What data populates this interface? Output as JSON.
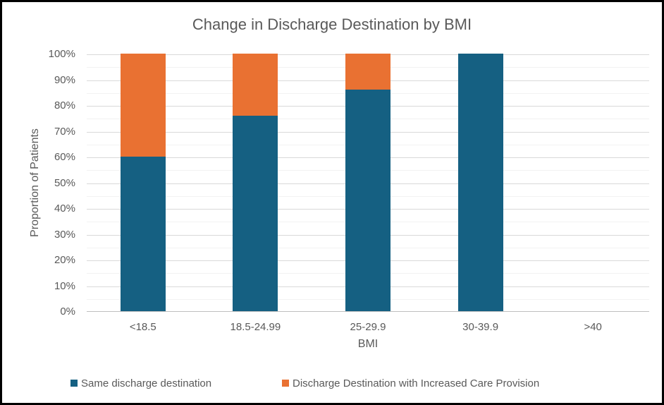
{
  "title": "Change in Discharge Destination by BMI",
  "colors": {
    "series1": "#156082",
    "series2": "#E97132",
    "text": "#595959",
    "grid_major": "#D9D9D9",
    "grid_minor": "#F2F2F2",
    "axis_line": "#BFBFBF",
    "frame_border": "#000000",
    "background": "#FFFFFF"
  },
  "chart_data": {
    "type": "bar",
    "stacked": true,
    "title": "Change in Discharge Destination by BMI",
    "xlabel": "BMI",
    "ylabel": "Proportion of Patients",
    "categories": [
      "<18.5",
      "18.5-24.99",
      "25-29.9",
      "30-39.9",
      ">40"
    ],
    "series": [
      {
        "name": "Same discharge destination",
        "color_key": "series1",
        "values": [
          60,
          76,
          86,
          100,
          0
        ]
      },
      {
        "name": "Discharge Destination with Increased Care Provision",
        "color_key": "series2",
        "values": [
          40,
          24,
          14,
          0,
          0
        ]
      }
    ],
    "ylim": [
      0,
      100
    ],
    "ytick_step": 10,
    "minor_gridline_step": 5,
    "ytick_labels": [
      "0%",
      "10%",
      "20%",
      "30%",
      "40%",
      "50%",
      "60%",
      "70%",
      "80%",
      "90%",
      "100%"
    ],
    "grid": true,
    "legend_position": "bottom"
  }
}
